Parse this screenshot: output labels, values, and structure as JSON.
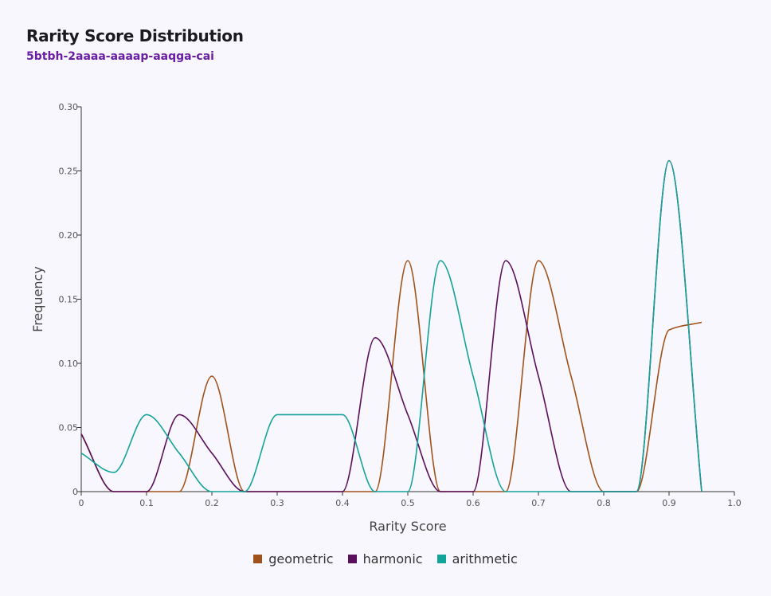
{
  "header": {
    "title": "Rarity Score Distribution",
    "subtitle": "5btbh-2aaaa-aaaap-aaqga-cai"
  },
  "chart_data": {
    "type": "line",
    "xlabel": "Rarity Score",
    "ylabel": "Frequency",
    "xlim": [
      0,
      1.0
    ],
    "ylim": [
      0,
      0.3
    ],
    "xticks": [
      0,
      0.1,
      0.2,
      0.3,
      0.4,
      0.5,
      0.6,
      0.7,
      0.8,
      0.9,
      1.0
    ],
    "xtick_labels": [
      "0",
      "0.1",
      "0.2",
      "0.3",
      "0.4",
      "0.5",
      "0.6",
      "0.7",
      "0.8",
      "0.9",
      "1.0"
    ],
    "yticks": [
      0,
      0.05,
      0.1,
      0.15,
      0.2,
      0.25,
      0.3
    ],
    "ytick_labels": [
      "0",
      "0.05",
      "0.10",
      "0.15",
      "0.20",
      "0.25",
      "0.30"
    ],
    "grid": false,
    "legend_position": "bottom",
    "series": [
      {
        "name": "geometric",
        "color": "#a0521a",
        "x": [
          0,
          0.05,
          0.15,
          0.2,
          0.25,
          0.45,
          0.5,
          0.55,
          0.65,
          0.7,
          0.75,
          0.8,
          0.85,
          0.9,
          0.95
        ],
        "y": [
          0.045,
          0,
          0,
          0.09,
          0,
          0,
          0.18,
          0,
          0,
          0.18,
          0.09,
          0,
          0,
          0.126,
          0.132
        ]
      },
      {
        "name": "harmonic",
        "color": "#5a0f5c",
        "x": [
          0,
          0.05,
          0.1,
          0.15,
          0.2,
          0.25,
          0.4,
          0.45,
          0.5,
          0.55,
          0.6,
          0.65,
          0.7,
          0.75,
          0.85,
          0.9,
          0.95
        ],
        "y": [
          0.045,
          0,
          0,
          0.06,
          0.03,
          0,
          0,
          0.12,
          0.06,
          0,
          0,
          0.18,
          0.09,
          0,
          0,
          0.258,
          0
        ]
      },
      {
        "name": "arithmetic",
        "color": "#12a39a",
        "x": [
          0,
          0.05,
          0.1,
          0.15,
          0.2,
          0.25,
          0.3,
          0.4,
          0.45,
          0.5,
          0.55,
          0.6,
          0.65,
          0.85,
          0.9,
          0.95
        ],
        "y": [
          0.03,
          0.015,
          0.06,
          0.03,
          0,
          0,
          0.06,
          0.06,
          0,
          0,
          0.18,
          0.09,
          0,
          0,
          0.258,
          0
        ]
      }
    ]
  }
}
